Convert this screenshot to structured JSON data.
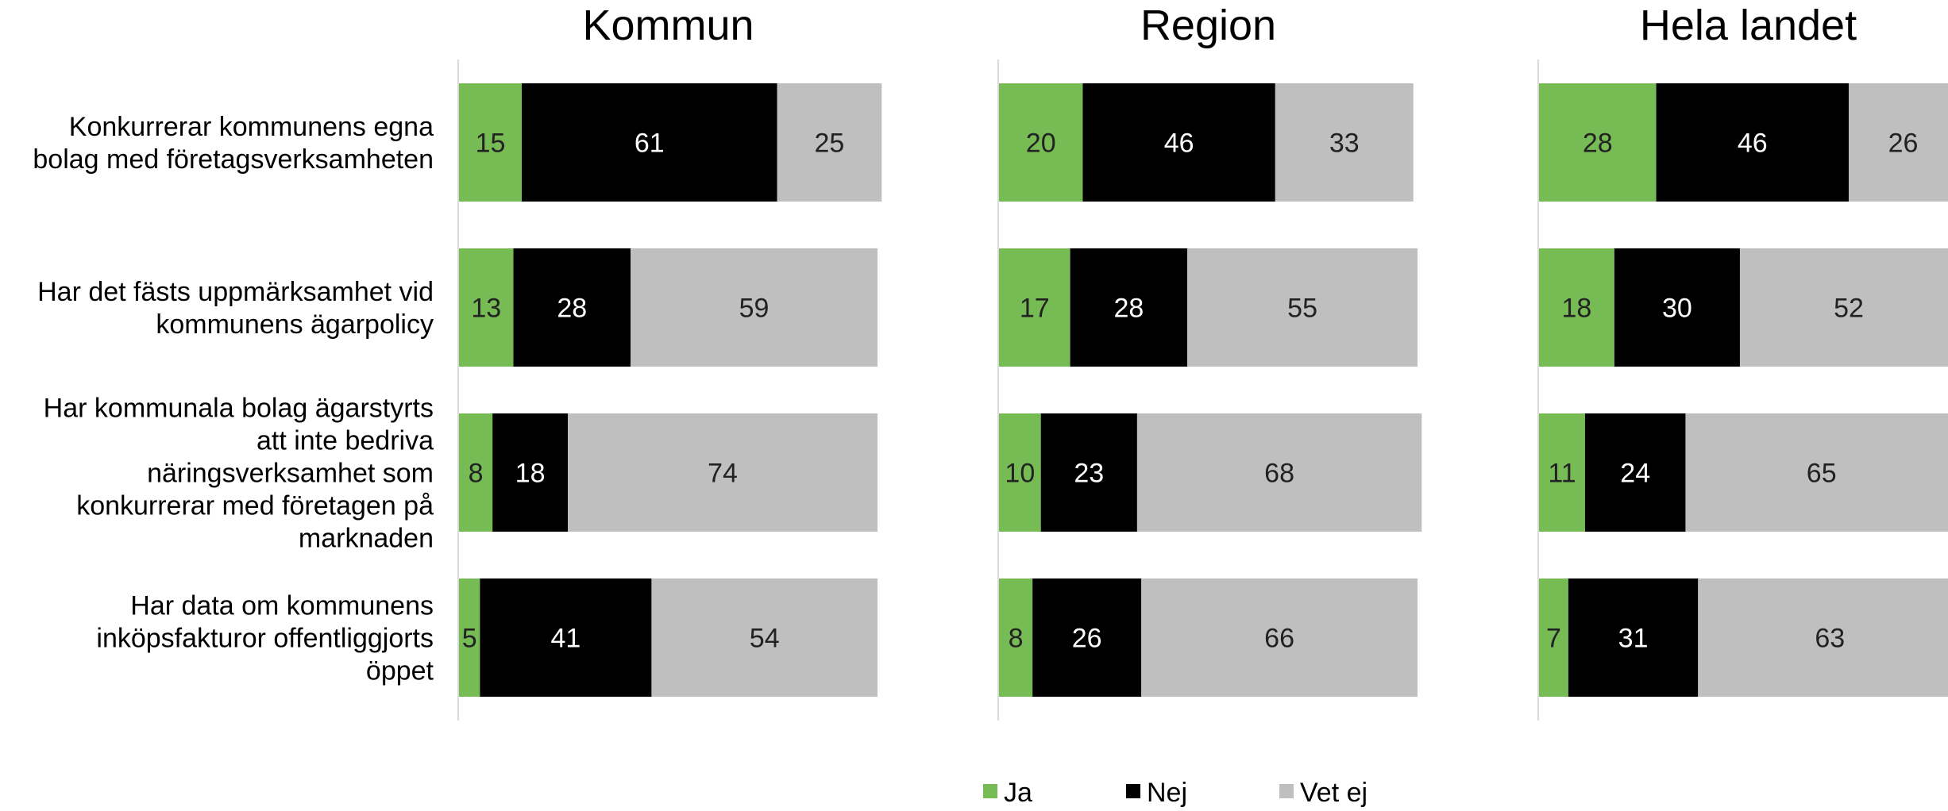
{
  "chart_data": {
    "type": "bar",
    "orientation": "horizontal",
    "stacked": true,
    "percent": true,
    "categories": [
      "Konkurrerar kommunens egna bolag med företagsverksamheten",
      "Har det fästs uppmärksamhet vid kommunens ägarpolicy",
      "Har kommunala bolag ägarstyrts att inte bedriva näringsverksamhet som konkurrerar med företagen på marknaden",
      "Har data om kommunens inköpsfakturor offentliggjorts öppet"
    ],
    "category_lines": [
      [
        "Konkurrerar kommunens egna",
        "bolag med företagsverksamheten"
      ],
      [
        "Har det fästs uppmärksamhet vid",
        "kommunens ägarpolicy"
      ],
      [
        "Har kommunala bolag ägarstyrts",
        "att inte bedriva",
        "näringsverksamhet som",
        "konkurrerar med företagen på",
        "marknaden"
      ],
      [
        "Har data om kommunens",
        "inköpsfakturor offentliggjorts",
        "öppet"
      ]
    ],
    "legend": [
      {
        "name": "Ja",
        "color": "#77bb55"
      },
      {
        "name": "Nej",
        "color": "#000000"
      },
      {
        "name": "Vet ej",
        "color": "#bfbfbf"
      }
    ],
    "legend_position": "bottom",
    "panels": [
      {
        "title": "Kommun",
        "series": [
          {
            "name": "Ja",
            "values": [
              15,
              13,
              8,
              5
            ]
          },
          {
            "name": "Nej",
            "values": [
              61,
              28,
              18,
              41
            ]
          },
          {
            "name": "Vet ej",
            "values": [
              25,
              59,
              74,
              54
            ]
          }
        ]
      },
      {
        "title": "Region",
        "series": [
          {
            "name": "Ja",
            "values": [
              20,
              17,
              10,
              8
            ]
          },
          {
            "name": "Nej",
            "values": [
              46,
              28,
              23,
              26
            ]
          },
          {
            "name": "Vet ej",
            "values": [
              33,
              55,
              68,
              66
            ]
          }
        ]
      },
      {
        "title": "Hela landet",
        "series": [
          {
            "name": "Ja",
            "values": [
              28,
              18,
              11,
              7
            ]
          },
          {
            "name": "Nej",
            "values": [
              46,
              30,
              24,
              31
            ]
          },
          {
            "name": "Vet ej",
            "values": [
              26,
              52,
              65,
              63
            ]
          }
        ]
      }
    ],
    "label_colors": {
      "Ja": "#222222",
      "Nej": "#ffffff",
      "Vet ej": "#222222"
    }
  }
}
